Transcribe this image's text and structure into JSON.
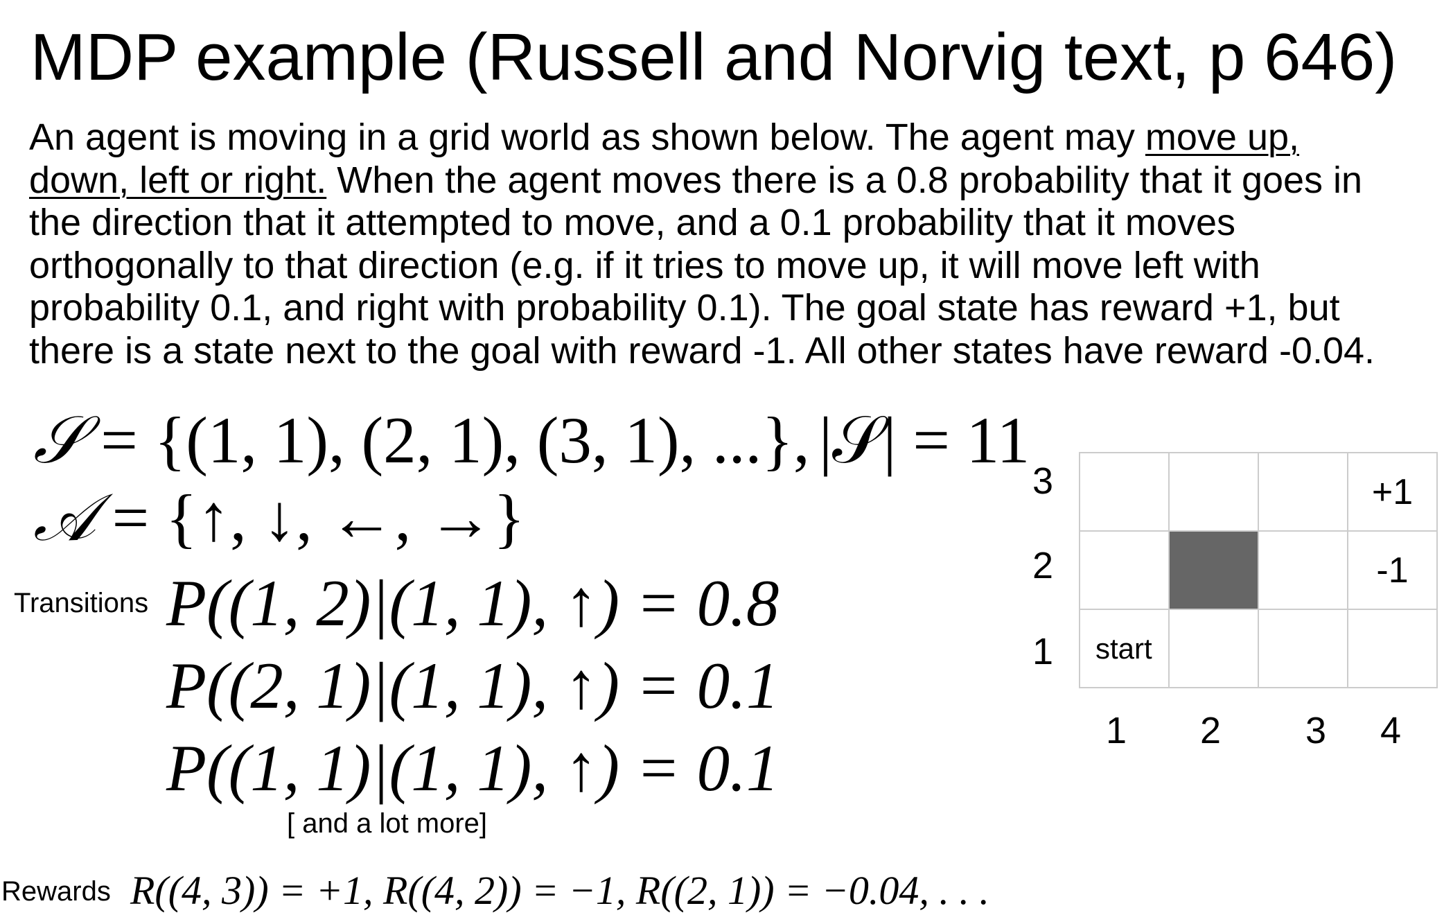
{
  "title": "MDP example (Russell and Norvig text, p 646)",
  "description": {
    "line1_pre": "An agent is moving in a grid world as shown below. The agent may ",
    "line1_u": "move up,",
    "line2_u": "down, left or right.",
    "line2_post": " When the agent moves there is a 0.8 probability that it goes in",
    "line3": "the direction that it attempted to move, and a 0.1 probability that it moves",
    "line4": "orthogonally to that direction (e.g. if it tries to move up, it will move left with",
    "line5": "probability 0.1, and right with probability 0.1). The goal state has reward +1, but",
    "line6": "there is a state next to the goal with reward -1. All other states have reward -0.04."
  },
  "formulas": {
    "states": "= {(1, 1), (2, 1), (3, 1), ...},",
    "states_symbol": "𝒮",
    "state_count": "|𝒮| = 11",
    "actions_symbol": "𝒜",
    "actions": "= {↑, ↓, ←, →}",
    "transitions_label": "Transitions",
    "transition_1": "P((1, 2)|(1, 1), ↑) = 0.8",
    "transition_2": "P((2, 1)|(1, 1), ↑) = 0.1",
    "transition_3": "P((1, 1)|(1, 1), ↑) = 0.1",
    "more_note": "[ and a lot more]",
    "rewards_label": "Rewards",
    "rewards": "R((4, 3)) = +1,    R((4, 2)) = −1,    R((2, 1)) = −0.04, . . ."
  },
  "grid": {
    "rows": [
      [
        "",
        "",
        "",
        "+1"
      ],
      [
        "",
        "",
        "",
        "-1"
      ],
      [
        "start",
        "",
        "",
        ""
      ]
    ],
    "wall_color": "#666666",
    "row_labels": [
      "3",
      "2",
      "1"
    ],
    "col_labels": [
      "1",
      "2",
      "3",
      "4"
    ]
  }
}
